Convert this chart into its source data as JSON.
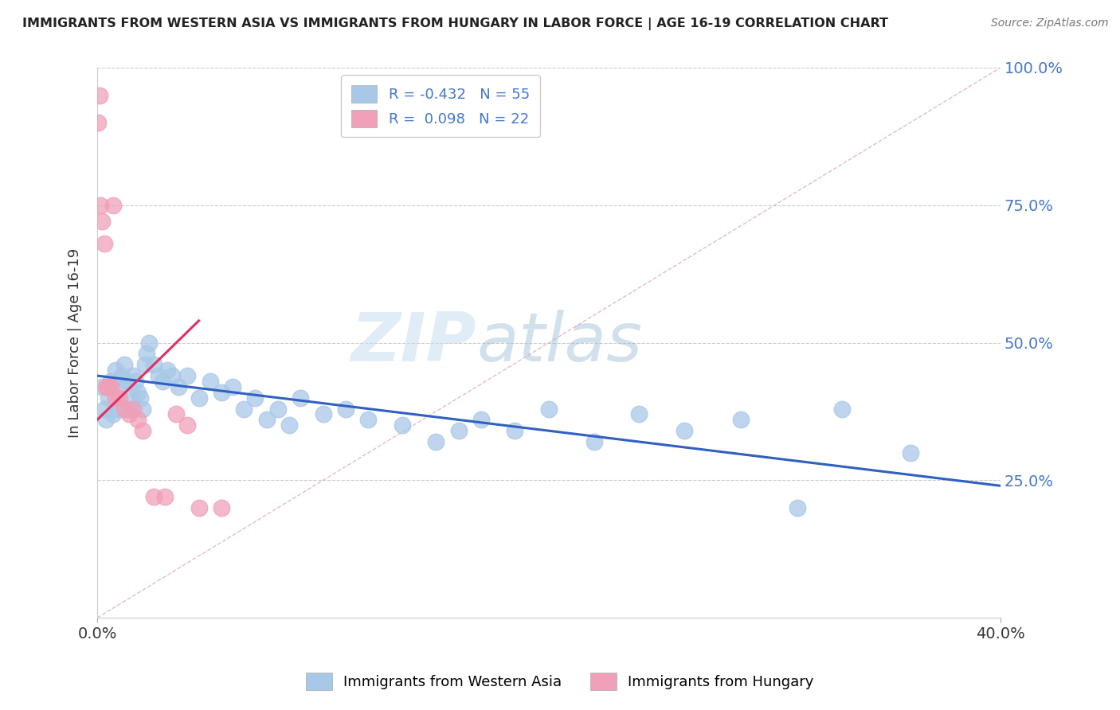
{
  "title": "IMMIGRANTS FROM WESTERN ASIA VS IMMIGRANTS FROM HUNGARY IN LABOR FORCE | AGE 16-19 CORRELATION CHART",
  "source": "Source: ZipAtlas.com",
  "ylabel_label": "In Labor Force | Age 16-19",
  "xlim": [
    0.0,
    40.0
  ],
  "ylim": [
    0.0,
    100.0
  ],
  "legend_entry1": "R = -0.432   N = 55",
  "legend_entry2": "R =  0.098   N = 22",
  "color_blue": "#a8c8e8",
  "color_pink": "#f0a0b8",
  "color_blue_line": "#3060c0",
  "color_pink_line": "#e03060",
  "watermark_zip": "ZIP",
  "watermark_atlas": "atlas",
  "blue_scatter_x": [
    0.2,
    0.3,
    0.4,
    0.5,
    0.6,
    0.7,
    0.8,
    0.9,
    1.0,
    1.1,
    1.2,
    1.3,
    1.4,
    1.5,
    1.6,
    1.7,
    1.8,
    1.9,
    2.0,
    2.1,
    2.2,
    2.3,
    2.5,
    2.7,
    2.9,
    3.1,
    3.3,
    3.6,
    4.0,
    4.5,
    5.0,
    5.5,
    6.0,
    6.5,
    7.0,
    7.5,
    8.0,
    8.5,
    9.0,
    10.0,
    11.0,
    12.0,
    13.5,
    15.0,
    16.0,
    17.0,
    18.5,
    20.0,
    22.0,
    24.0,
    26.0,
    28.5,
    31.0,
    33.0,
    36.0
  ],
  "blue_scatter_y": [
    42.0,
    38.0,
    36.0,
    40.0,
    43.0,
    37.0,
    45.0,
    38.0,
    42.0,
    44.0,
    46.0,
    43.0,
    38.0,
    40.0,
    44.0,
    43.0,
    41.0,
    40.0,
    38.0,
    46.0,
    48.0,
    50.0,
    46.0,
    44.0,
    43.0,
    45.0,
    44.0,
    42.0,
    44.0,
    40.0,
    43.0,
    41.0,
    42.0,
    38.0,
    40.0,
    36.0,
    38.0,
    35.0,
    40.0,
    37.0,
    38.0,
    36.0,
    35.0,
    32.0,
    34.0,
    36.0,
    34.0,
    38.0,
    32.0,
    37.0,
    34.0,
    36.0,
    20.0,
    38.0,
    30.0
  ],
  "pink_scatter_x": [
    0.05,
    0.1,
    0.15,
    0.2,
    0.3,
    0.4,
    0.5,
    0.6,
    0.7,
    0.8,
    1.0,
    1.2,
    1.4,
    1.6,
    1.8,
    2.0,
    2.5,
    3.0,
    3.5,
    4.0,
    4.5,
    5.5
  ],
  "pink_scatter_y": [
    90.0,
    95.0,
    75.0,
    72.0,
    68.0,
    42.0,
    42.0,
    42.0,
    75.0,
    40.0,
    40.0,
    38.0,
    37.0,
    38.0,
    36.0,
    34.0,
    22.0,
    22.0,
    37.0,
    35.0,
    20.0,
    20.0
  ],
  "blue_trend_x0": 0.0,
  "blue_trend_x1": 40.0,
  "blue_trend_y0": 44.0,
  "blue_trend_y1": 24.0,
  "pink_trend_x0": 0.0,
  "pink_trend_x1": 4.5,
  "pink_trend_y0": 36.0,
  "pink_trend_y1": 54.0,
  "ref_line_x": [
    0.0,
    40.0
  ],
  "ref_line_y": [
    0.0,
    100.0
  ],
  "ytick_vals": [
    25,
    50,
    75,
    100
  ],
  "ytick_labels": [
    "25.0%",
    "50.0%",
    "75.0%",
    "100.0%"
  ],
  "xtick_vals": [
    0,
    40
  ],
  "xtick_labels": [
    "0.0%",
    "40.0%"
  ]
}
